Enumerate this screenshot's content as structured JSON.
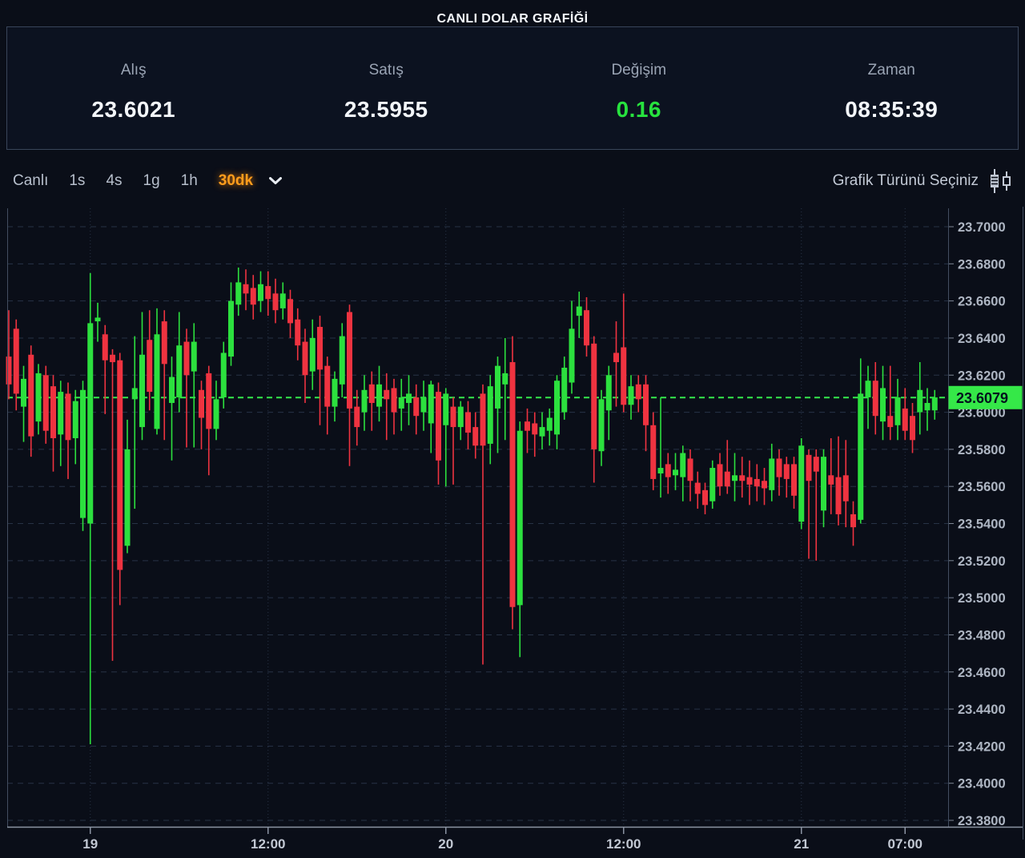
{
  "header": {
    "title": "CANLI DOLAR GRAFİĞİ",
    "quotes": [
      {
        "label": "Alış",
        "value": "23.6021"
      },
      {
        "label": "Satış",
        "value": "23.5955"
      },
      {
        "label": "Değişim",
        "value": "0.16"
      },
      {
        "label": "Zaman",
        "value": "08:35:39"
      }
    ]
  },
  "toolbar": {
    "items": [
      {
        "label": "Canlı",
        "active": false
      },
      {
        "label": "1s",
        "active": false
      },
      {
        "label": "4s",
        "active": false
      },
      {
        "label": "1g",
        "active": false
      },
      {
        "label": "1h",
        "active": false
      },
      {
        "label": "30dk",
        "active": true
      }
    ],
    "chart_type_label": "Grafik Türünü Seçiniz"
  },
  "colors": {
    "background": "#0a0e18",
    "panel_border": "#39455a",
    "up": "#2ce03e",
    "down": "#ef3340",
    "price_line": "#35ea4c",
    "badge_bg": "#35e848",
    "badge_text": "#03111d",
    "grid": "#273245",
    "axis_line": "#8a93a2",
    "plot_border": "#434e60",
    "y_label": "#aeb6c3",
    "x_label": "#c2c8d3",
    "change_green": "#27e33e",
    "accent_orange": "#ff9d1c"
  },
  "chart_data": {
    "type": "candlestick",
    "title": "CANLI DOLAR GRAFİĞİ",
    "interval": "30dk",
    "current_price": 23.6079,
    "current_price_label": "23.6079",
    "y_axis": {
      "min": 23.38,
      "max": 23.7,
      "step": 0.02,
      "decimals": 4
    },
    "x_ticks": [
      {
        "i": 11,
        "label": "19"
      },
      {
        "i": 35,
        "label": "12:00"
      },
      {
        "i": 59,
        "label": "20"
      },
      {
        "i": 83,
        "label": "12:00"
      },
      {
        "i": 107,
        "label": "21"
      },
      {
        "i": 121,
        "label": "07:00"
      }
    ],
    "candles": [
      [
        23.63,
        23.655,
        23.607,
        23.615
      ],
      [
        23.645,
        23.65,
        23.601,
        23.61
      ],
      [
        23.603,
        23.625,
        23.584,
        23.618
      ],
      [
        23.631,
        23.636,
        23.576,
        23.587
      ],
      [
        23.595,
        23.626,
        23.588,
        23.621
      ],
      [
        23.62,
        23.625,
        23.583,
        23.59
      ],
      [
        23.614,
        23.62,
        23.568,
        23.586
      ],
      [
        23.588,
        23.617,
        23.571,
        23.611
      ],
      [
        23.61,
        23.616,
        23.564,
        23.585
      ],
      [
        23.586,
        23.612,
        23.572,
        23.606
      ],
      [
        23.543,
        23.617,
        23.536,
        23.612
      ],
      [
        23.54,
        23.675,
        23.421,
        23.648
      ],
      [
        23.649,
        23.659,
        23.638,
        23.651
      ],
      [
        23.642,
        23.647,
        23.599,
        23.628
      ],
      [
        23.631,
        23.634,
        23.466,
        23.627
      ],
      [
        23.628,
        23.632,
        23.496,
        23.515
      ],
      [
        23.528,
        23.596,
        23.524,
        23.58
      ],
      [
        23.607,
        23.641,
        23.548,
        23.613
      ],
      [
        23.592,
        23.654,
        23.585,
        23.631
      ],
      [
        23.639,
        23.655,
        23.601,
        23.611
      ],
      [
        23.591,
        23.656,
        23.588,
        23.642
      ],
      [
        23.649,
        23.655,
        23.585,
        23.626
      ],
      [
        23.605,
        23.63,
        23.574,
        23.619
      ],
      [
        23.608,
        23.654,
        23.6,
        23.636
      ],
      [
        23.638,
        23.645,
        23.581,
        23.62
      ],
      [
        23.622,
        23.648,
        23.581,
        23.638
      ],
      [
        23.612,
        23.617,
        23.58,
        23.597
      ],
      [
        23.621,
        23.625,
        23.566,
        23.591
      ],
      [
        23.591,
        23.617,
        23.585,
        23.607
      ],
      [
        23.608,
        23.638,
        23.602,
        23.632
      ],
      [
        23.63,
        23.67,
        23.625,
        23.66
      ],
      [
        23.658,
        23.678,
        23.652,
        23.67
      ],
      [
        23.669,
        23.677,
        23.655,
        23.664
      ],
      [
        23.667,
        23.674,
        23.65,
        23.658
      ],
      [
        23.66,
        23.676,
        23.654,
        23.669
      ],
      [
        23.668,
        23.676,
        23.652,
        23.661
      ],
      [
        23.664,
        23.672,
        23.648,
        23.655
      ],
      [
        23.656,
        23.67,
        23.65,
        23.664
      ],
      [
        23.661,
        23.666,
        23.64,
        23.648
      ],
      [
        23.65,
        23.656,
        23.628,
        23.636
      ],
      [
        23.638,
        23.645,
        23.605,
        23.62
      ],
      [
        23.622,
        23.65,
        23.612,
        23.64
      ],
      [
        23.646,
        23.652,
        23.593,
        23.623
      ],
      [
        23.625,
        23.63,
        23.588,
        23.603
      ],
      [
        23.603,
        23.622,
        23.595,
        23.618
      ],
      [
        23.615,
        23.648,
        23.608,
        23.641
      ],
      [
        23.654,
        23.658,
        23.571,
        23.602
      ],
      [
        23.603,
        23.612,
        23.582,
        23.592
      ],
      [
        23.6,
        23.62,
        23.59,
        23.612
      ],
      [
        23.615,
        23.622,
        23.59,
        23.605
      ],
      [
        23.603,
        23.625,
        23.595,
        23.615
      ],
      [
        23.612,
        23.621,
        23.585,
        23.607
      ],
      [
        23.613,
        23.618,
        23.588,
        23.6
      ],
      [
        23.602,
        23.618,
        23.59,
        23.608
      ],
      [
        23.605,
        23.62,
        23.593,
        23.61
      ],
      [
        23.608,
        23.615,
        23.588,
        23.598
      ],
      [
        23.6,
        23.617,
        23.59,
        23.608
      ],
      [
        23.594,
        23.617,
        23.578,
        23.615
      ],
      [
        23.611,
        23.616,
        23.561,
        23.574
      ],
      [
        23.593,
        23.613,
        23.56,
        23.61
      ],
      [
        23.603,
        23.608,
        23.561,
        23.592
      ],
      [
        23.592,
        23.606,
        23.585,
        23.603
      ],
      [
        23.6,
        23.606,
        23.58,
        23.589
      ],
      [
        23.592,
        23.6,
        23.575,
        23.582
      ],
      [
        23.61,
        23.615,
        23.464,
        23.582
      ],
      [
        23.583,
        23.62,
        23.572,
        23.614
      ],
      [
        23.602,
        23.63,
        23.578,
        23.625
      ],
      [
        23.615,
        23.64,
        23.585,
        23.621
      ],
      [
        23.627,
        23.641,
        23.483,
        23.495
      ],
      [
        23.496,
        23.595,
        23.468,
        23.59
      ],
      [
        23.595,
        23.602,
        23.578,
        23.59
      ],
      [
        23.594,
        23.6,
        23.576,
        23.588
      ],
      [
        23.587,
        23.6,
        23.58,
        23.592
      ],
      [
        23.59,
        23.602,
        23.582,
        23.597
      ],
      [
        23.588,
        23.62,
        23.58,
        23.617
      ],
      [
        23.6,
        23.63,
        23.596,
        23.624
      ],
      [
        23.616,
        23.66,
        23.61,
        23.645
      ],
      [
        23.652,
        23.665,
        23.64,
        23.657
      ],
      [
        23.655,
        23.662,
        23.63,
        23.636
      ],
      [
        23.637,
        23.641,
        23.562,
        23.58
      ],
      [
        23.579,
        23.612,
        23.571,
        23.607
      ],
      [
        23.601,
        23.625,
        23.585,
        23.62
      ],
      [
        23.632,
        23.649,
        23.603,
        23.627
      ],
      [
        23.635,
        23.664,
        23.6,
        23.604
      ],
      [
        23.604,
        23.62,
        23.596,
        23.614
      ],
      [
        23.615,
        23.62,
        23.6,
        23.607
      ],
      [
        23.615,
        23.62,
        23.579,
        23.593
      ],
      [
        23.593,
        23.6,
        23.558,
        23.564
      ],
      [
        23.567,
        23.608,
        23.554,
        23.57
      ],
      [
        23.572,
        23.578,
        23.556,
        23.565
      ],
      [
        23.566,
        23.578,
        23.558,
        23.569
      ],
      [
        23.565,
        23.582,
        23.552,
        23.578
      ],
      [
        23.575,
        23.58,
        23.552,
        23.563
      ],
      [
        23.562,
        23.568,
        23.548,
        23.556
      ],
      [
        23.558,
        23.562,
        23.545,
        23.55
      ],
      [
        23.552,
        23.574,
        23.548,
        23.57
      ],
      [
        23.572,
        23.578,
        23.555,
        23.56
      ],
      [
        23.568,
        23.585,
        23.556,
        23.56
      ],
      [
        23.563,
        23.578,
        23.552,
        23.566
      ],
      [
        23.566,
        23.576,
        23.554,
        23.563
      ],
      [
        23.565,
        23.574,
        23.55,
        23.561
      ],
      [
        23.564,
        23.572,
        23.552,
        23.56
      ],
      [
        23.563,
        23.57,
        23.55,
        23.559
      ],
      [
        23.558,
        23.583,
        23.552,
        23.575
      ],
      [
        23.575,
        23.58,
        23.555,
        23.565
      ],
      [
        23.572,
        23.576,
        23.554,
        23.564
      ],
      [
        23.572,
        23.576,
        23.548,
        23.555
      ],
      [
        23.541,
        23.586,
        23.537,
        23.582
      ],
      [
        23.577,
        23.58,
        23.521,
        23.563
      ],
      [
        23.576,
        23.58,
        23.52,
        23.568
      ],
      [
        23.547,
        23.58,
        23.538,
        23.576
      ],
      [
        23.566,
        23.586,
        23.545,
        23.561
      ],
      [
        23.565,
        23.587,
        23.539,
        23.545
      ],
      [
        23.566,
        23.585,
        23.538,
        23.552
      ],
      [
        23.545,
        23.552,
        23.528,
        23.538
      ],
      [
        23.542,
        23.629,
        23.54,
        23.61
      ],
      [
        23.608,
        23.625,
        23.591,
        23.617
      ],
      [
        23.617,
        23.627,
        23.588,
        23.598
      ],
      [
        23.595,
        23.625,
        23.585,
        23.613
      ],
      [
        23.598,
        23.625,
        23.585,
        23.592
      ],
      [
        23.593,
        23.618,
        23.585,
        23.608
      ],
      [
        23.602,
        23.613,
        23.585,
        23.59
      ],
      [
        23.598,
        23.605,
        23.578,
        23.585
      ],
      [
        23.6,
        23.627,
        23.588,
        23.612
      ],
      [
        23.601,
        23.613,
        23.59,
        23.605
      ],
      [
        23.601,
        23.612,
        23.596,
        23.608
      ]
    ]
  }
}
